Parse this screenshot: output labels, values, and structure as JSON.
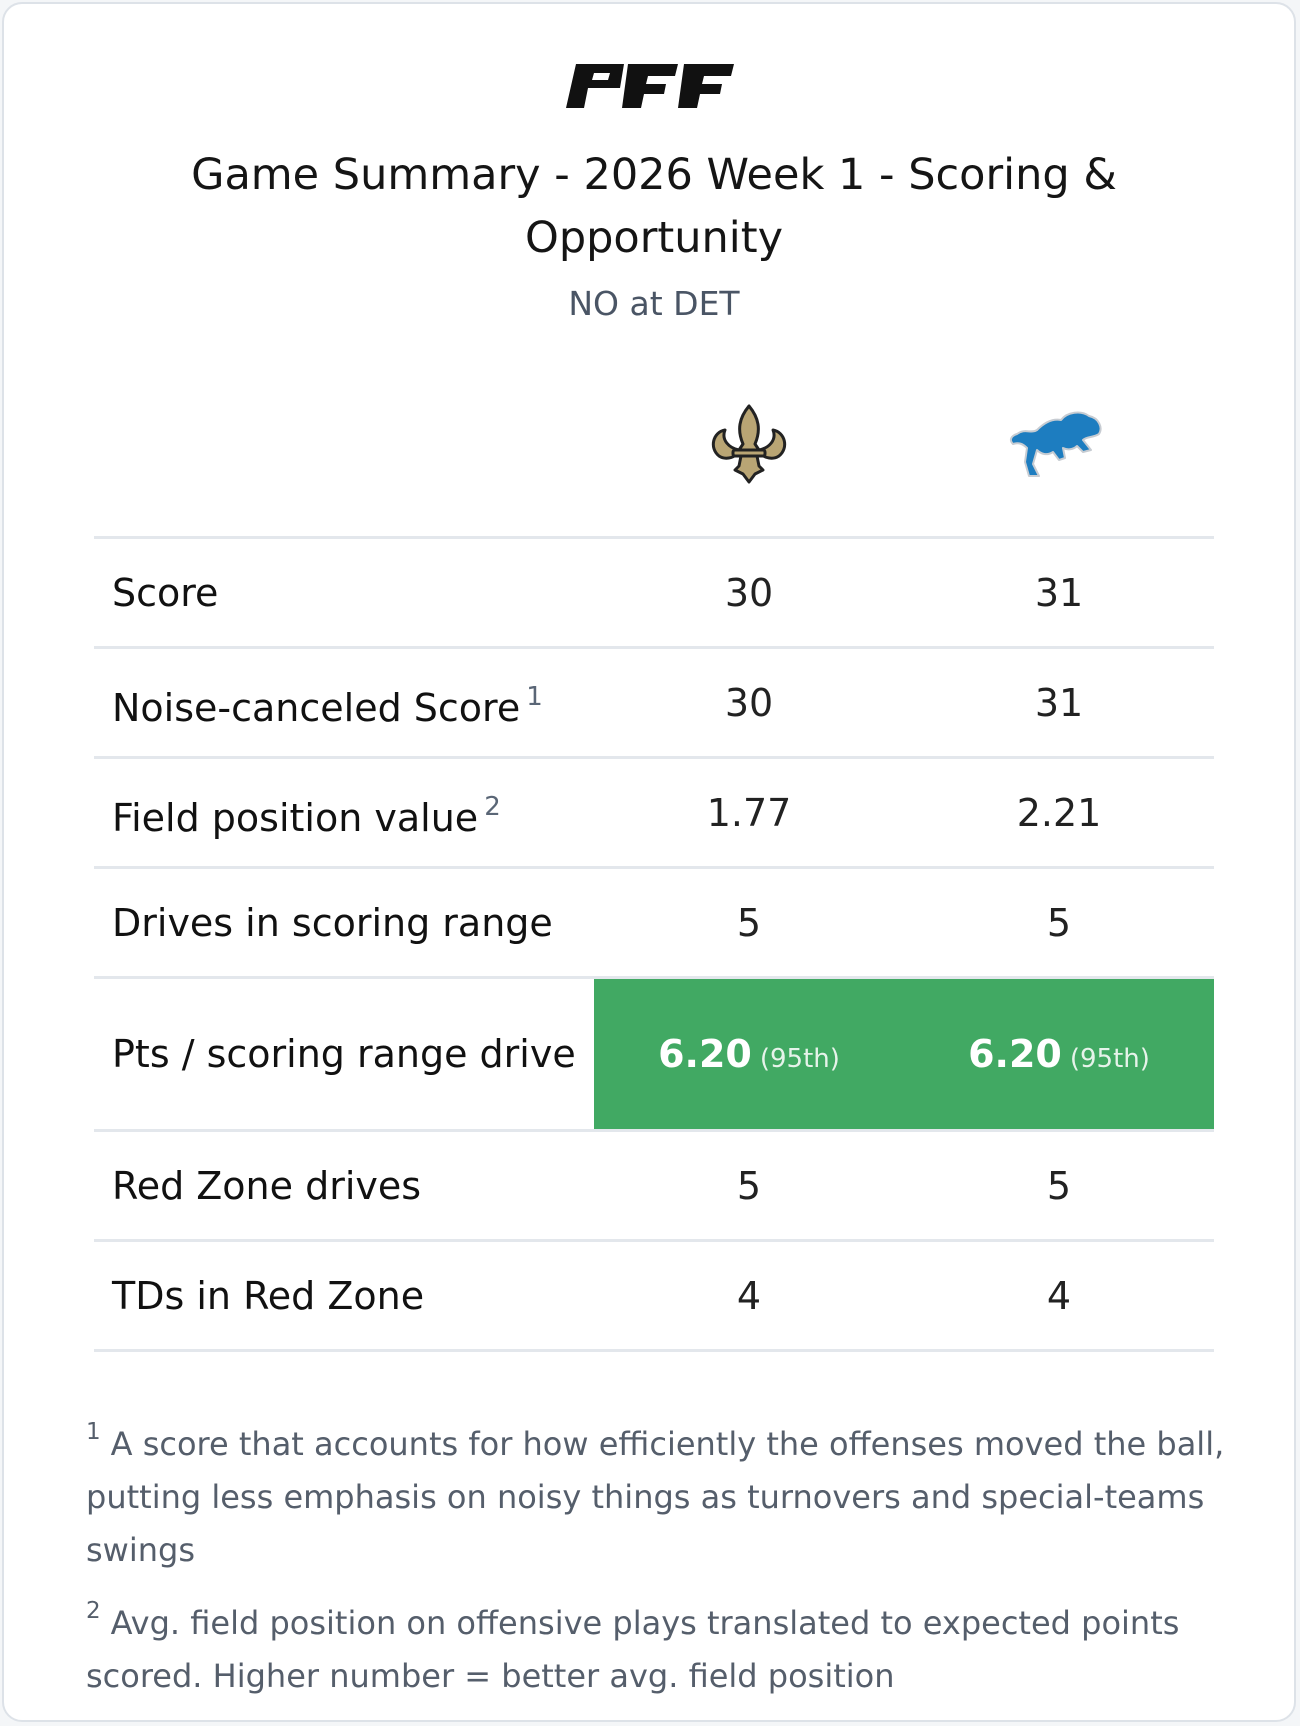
{
  "header": {
    "brand": "PFF",
    "title": "Game Summary - 2026 Week 1 - Scoring & Opportunity",
    "subtitle": "NO at DET"
  },
  "teams": [
    {
      "abbr": "NO",
      "logo_icon": "fleur-de-lis-icon",
      "color": "#b9a574"
    },
    {
      "abbr": "DET",
      "logo_icon": "lion-icon",
      "color": "#1d7dc0"
    }
  ],
  "rows": [
    {
      "label": "Score",
      "no": "30",
      "det": "31",
      "note": ""
    },
    {
      "label": "Noise-canceled Score",
      "no": "30",
      "det": "31",
      "note": "1"
    },
    {
      "label": "Field position value",
      "no": "1.77",
      "det": "2.21",
      "note": "2"
    },
    {
      "label": "Drives in scoring range",
      "no": "5",
      "det": "5",
      "note": ""
    },
    {
      "label": "Pts / scoring range drive",
      "no": "6.20",
      "det": "6.20",
      "no_rank": "(95th)",
      "det_rank": "(95th)",
      "highlight_color": "#41a963"
    },
    {
      "label": "Red Zone drives",
      "no": "5",
      "det": "5",
      "note": ""
    },
    {
      "label": "TDs in Red Zone",
      "no": "4",
      "det": "4",
      "note": ""
    }
  ],
  "footnotes": [
    {
      "mark": "1",
      "text": "A score that accounts for how efficiently the offenses moved the ball, putting less emphasis on noisy things as turnovers and special-teams swings"
    },
    {
      "mark": "2",
      "text": "Avg. field position on offensive plays translated to expected points scored. Higher number = better avg. field position"
    }
  ]
}
